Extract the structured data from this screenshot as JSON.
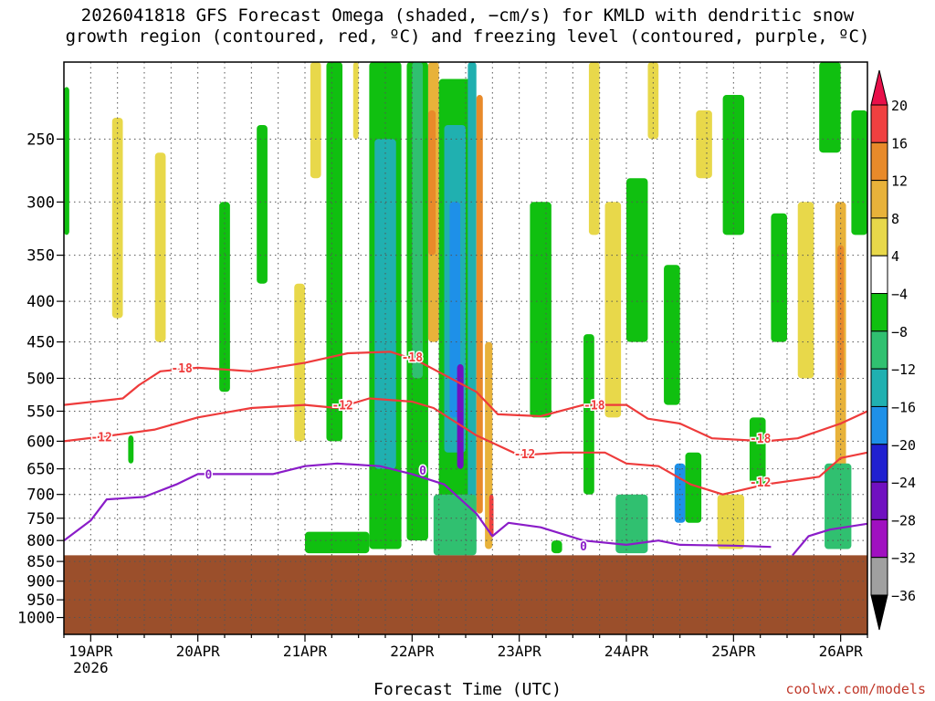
{
  "title_line1": "2026041818 GFS Forecast Omega (shaded, −cm/s) for KMLD with dendritic snow",
  "title_line2": "growth region (contoured, red, ºC) and freezing level (contoured, purple, ºC)",
  "credit": "coolwx.com/models",
  "chart_data": {
    "type": "heatmap",
    "title": "2026041818 GFS Forecast Omega (shaded, −cm/s) for KMLD with dendritic snow growth region (contoured, red, ºC) and freezing level (contoured, purple, ºC)",
    "xlabel": "Forecast Time (UTC)",
    "ylabel": "",
    "x_ticks": [
      {
        "day": 0,
        "label": "19APR",
        "sublabel": "2026"
      },
      {
        "day": 1,
        "label": "20APR"
      },
      {
        "day": 2,
        "label": "21APR"
      },
      {
        "day": 3,
        "label": "22APR"
      },
      {
        "day": 4,
        "label": "23APR"
      },
      {
        "day": 5,
        "label": "24APR"
      },
      {
        "day": 6,
        "label": "25APR"
      },
      {
        "day": 7,
        "label": "26APR"
      }
    ],
    "x_range_days": [
      -0.25,
      7.25
    ],
    "y_ticks": [
      250,
      300,
      350,
      400,
      450,
      500,
      550,
      600,
      650,
      700,
      750,
      800,
      850,
      900,
      950,
      1000
    ],
    "y_range_hpa": [
      200,
      1050
    ],
    "y_scale": "log-pressure",
    "grid": true,
    "terrain_surface_hpa": 835,
    "colorbar": {
      "ticks": [
        "20",
        "16",
        "12",
        "8",
        "4",
        "−4",
        "−8",
        "−12",
        "−16",
        "−20",
        "−24",
        "−28",
        "−32",
        "−36"
      ],
      "colors": [
        "#e8104a",
        "#f04040",
        "#e88a2a",
        "#e8b23a",
        "#e8d84a",
        "#ffffff",
        "#10c010",
        "#30c070",
        "#20b0b0",
        "#1e90e8",
        "#2020d0",
        "#7010c0",
        "#a010c0",
        "#a0a0a0",
        "#000000"
      ],
      "extends": "both"
    },
    "red_contours": [
      {
        "label": "-18",
        "points": [
          [
            -0.25,
            540
          ],
          [
            0.3,
            530
          ],
          [
            0.45,
            510
          ],
          [
            0.65,
            490
          ],
          [
            1,
            485
          ],
          [
            1.5,
            490
          ],
          [
            2,
            478
          ],
          [
            2.4,
            465
          ],
          [
            2.8,
            463
          ],
          [
            3.05,
            475
          ],
          [
            3.3,
            495
          ],
          [
            3.6,
            520
          ],
          [
            3.8,
            555
          ],
          [
            4.2,
            558
          ],
          [
            4.6,
            540
          ],
          [
            5,
            540
          ],
          [
            5.2,
            562
          ],
          [
            5.5,
            570
          ],
          [
            5.8,
            595
          ],
          [
            6.3,
            600
          ],
          [
            6.6,
            595
          ],
          [
            7,
            570
          ],
          [
            7.25,
            550
          ]
        ],
        "labels_at": [
          [
            0.85,
            485
          ],
          [
            3.0,
            470
          ],
          [
            4.7,
            540
          ],
          [
            6.25,
            595
          ]
        ]
      },
      {
        "label": "-12",
        "points": [
          [
            -0.25,
            600
          ],
          [
            0.2,
            590
          ],
          [
            0.6,
            580
          ],
          [
            1,
            560
          ],
          [
            1.5,
            545
          ],
          [
            2,
            540
          ],
          [
            2.3,
            545
          ],
          [
            2.6,
            530
          ],
          [
            3,
            535
          ],
          [
            3.2,
            545
          ],
          [
            3.6,
            590
          ],
          [
            4,
            625
          ],
          [
            4.4,
            620
          ],
          [
            4.8,
            620
          ],
          [
            5,
            640
          ],
          [
            5.3,
            645
          ],
          [
            5.6,
            680
          ],
          [
            5.9,
            700
          ],
          [
            6.3,
            680
          ],
          [
            6.8,
            665
          ],
          [
            7,
            630
          ],
          [
            7.25,
            620
          ]
        ],
        "labels_at": [
          [
            0.1,
            592
          ],
          [
            2.35,
            540
          ],
          [
            4.05,
            622
          ],
          [
            6.25,
            675
          ]
        ]
      }
    ],
    "purple_contours": [
      {
        "label": "0",
        "points": [
          [
            -0.25,
            800
          ],
          [
            0,
            755
          ],
          [
            0.15,
            710
          ],
          [
            0.5,
            705
          ],
          [
            0.8,
            680
          ],
          [
            1,
            660
          ],
          [
            1.4,
            660
          ],
          [
            1.7,
            660
          ],
          [
            2,
            645
          ],
          [
            2.3,
            640
          ],
          [
            2.7,
            645
          ],
          [
            3,
            660
          ],
          [
            3.3,
            680
          ],
          [
            3.6,
            740
          ],
          [
            3.75,
            790
          ],
          [
            3.9,
            760
          ],
          [
            4.2,
            770
          ],
          [
            4.6,
            800
          ],
          [
            5,
            810
          ],
          [
            5.3,
            800
          ],
          [
            5.5,
            810
          ],
          [
            6,
            812
          ],
          [
            6.35,
            815
          ]
        ],
        "labels_at": [
          [
            1.1,
            660
          ],
          [
            3.1,
            652
          ],
          [
            4.6,
            812
          ]
        ]
      },
      {
        "label": "0",
        "points": [
          [
            6.55,
            835
          ],
          [
            6.7,
            790
          ],
          [
            6.9,
            775
          ],
          [
            7.25,
            762
          ]
        ]
      }
    ]
  }
}
